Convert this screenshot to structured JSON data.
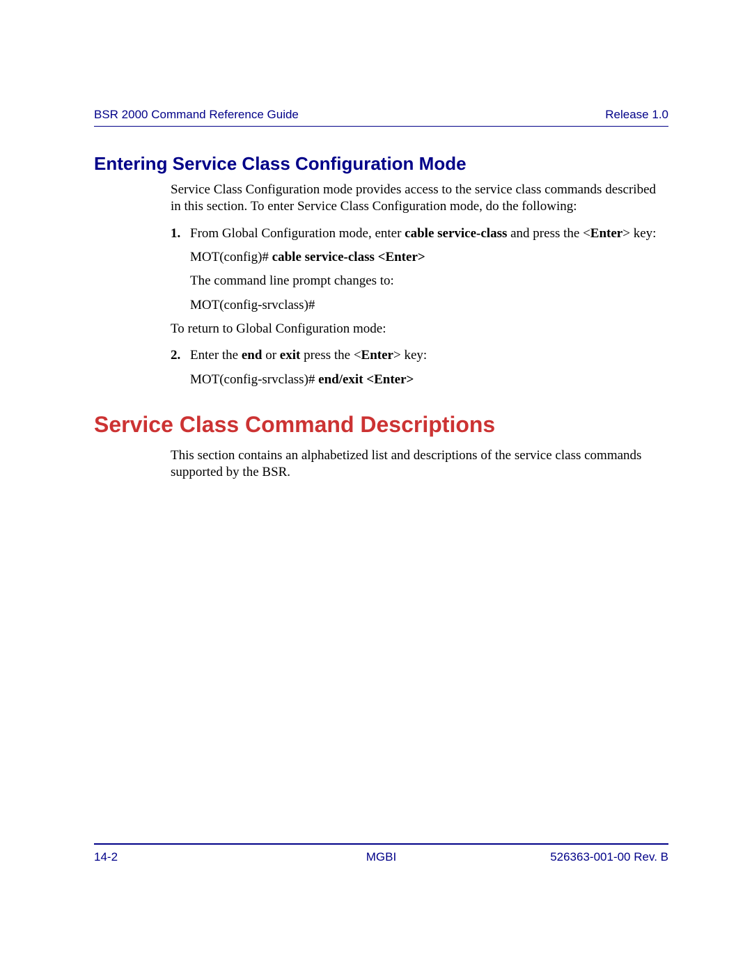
{
  "header": {
    "left": "BSR 2000 Command Reference Guide",
    "right": "Release 1.0"
  },
  "section1": {
    "title": "Entering Service Class Configuration Mode",
    "intro": "Service Class Configuration mode provides access to the service class commands described in this section. To enter Service Class Configuration mode, do the following:",
    "step1_num": "1.",
    "step1_a": "From Global Configuration mode, enter ",
    "step1_b": "cable service-class",
    "step1_c": " and press the <",
    "step1_d": "Enter",
    "step1_e": "> key:",
    "cmd1_a": "MOT(config)# ",
    "cmd1_b": "cable service-class <Enter>",
    "line2": "The command line prompt changes to:",
    "line3": "MOT(config-srvclass)#",
    "return": "To return to Global Configuration mode:",
    "step2_num": "2.",
    "step2_a": "Enter the ",
    "step2_b": "end",
    "step2_c": " or ",
    "step2_d": "exit",
    "step2_e": " press the <",
    "step2_f": "Enter",
    "step2_g": "> key:",
    "cmd2_a": "MOT(config-srvclass)# ",
    "cmd2_b": "end/exit <Enter>"
  },
  "section2": {
    "title": "Service Class Command Descriptions",
    "para": "This section contains an alphabetized list and descriptions of the service class commands supported by the BSR."
  },
  "footer": {
    "left": "14-2",
    "center": "MGBI",
    "right": "526363-001-00 Rev. B"
  }
}
